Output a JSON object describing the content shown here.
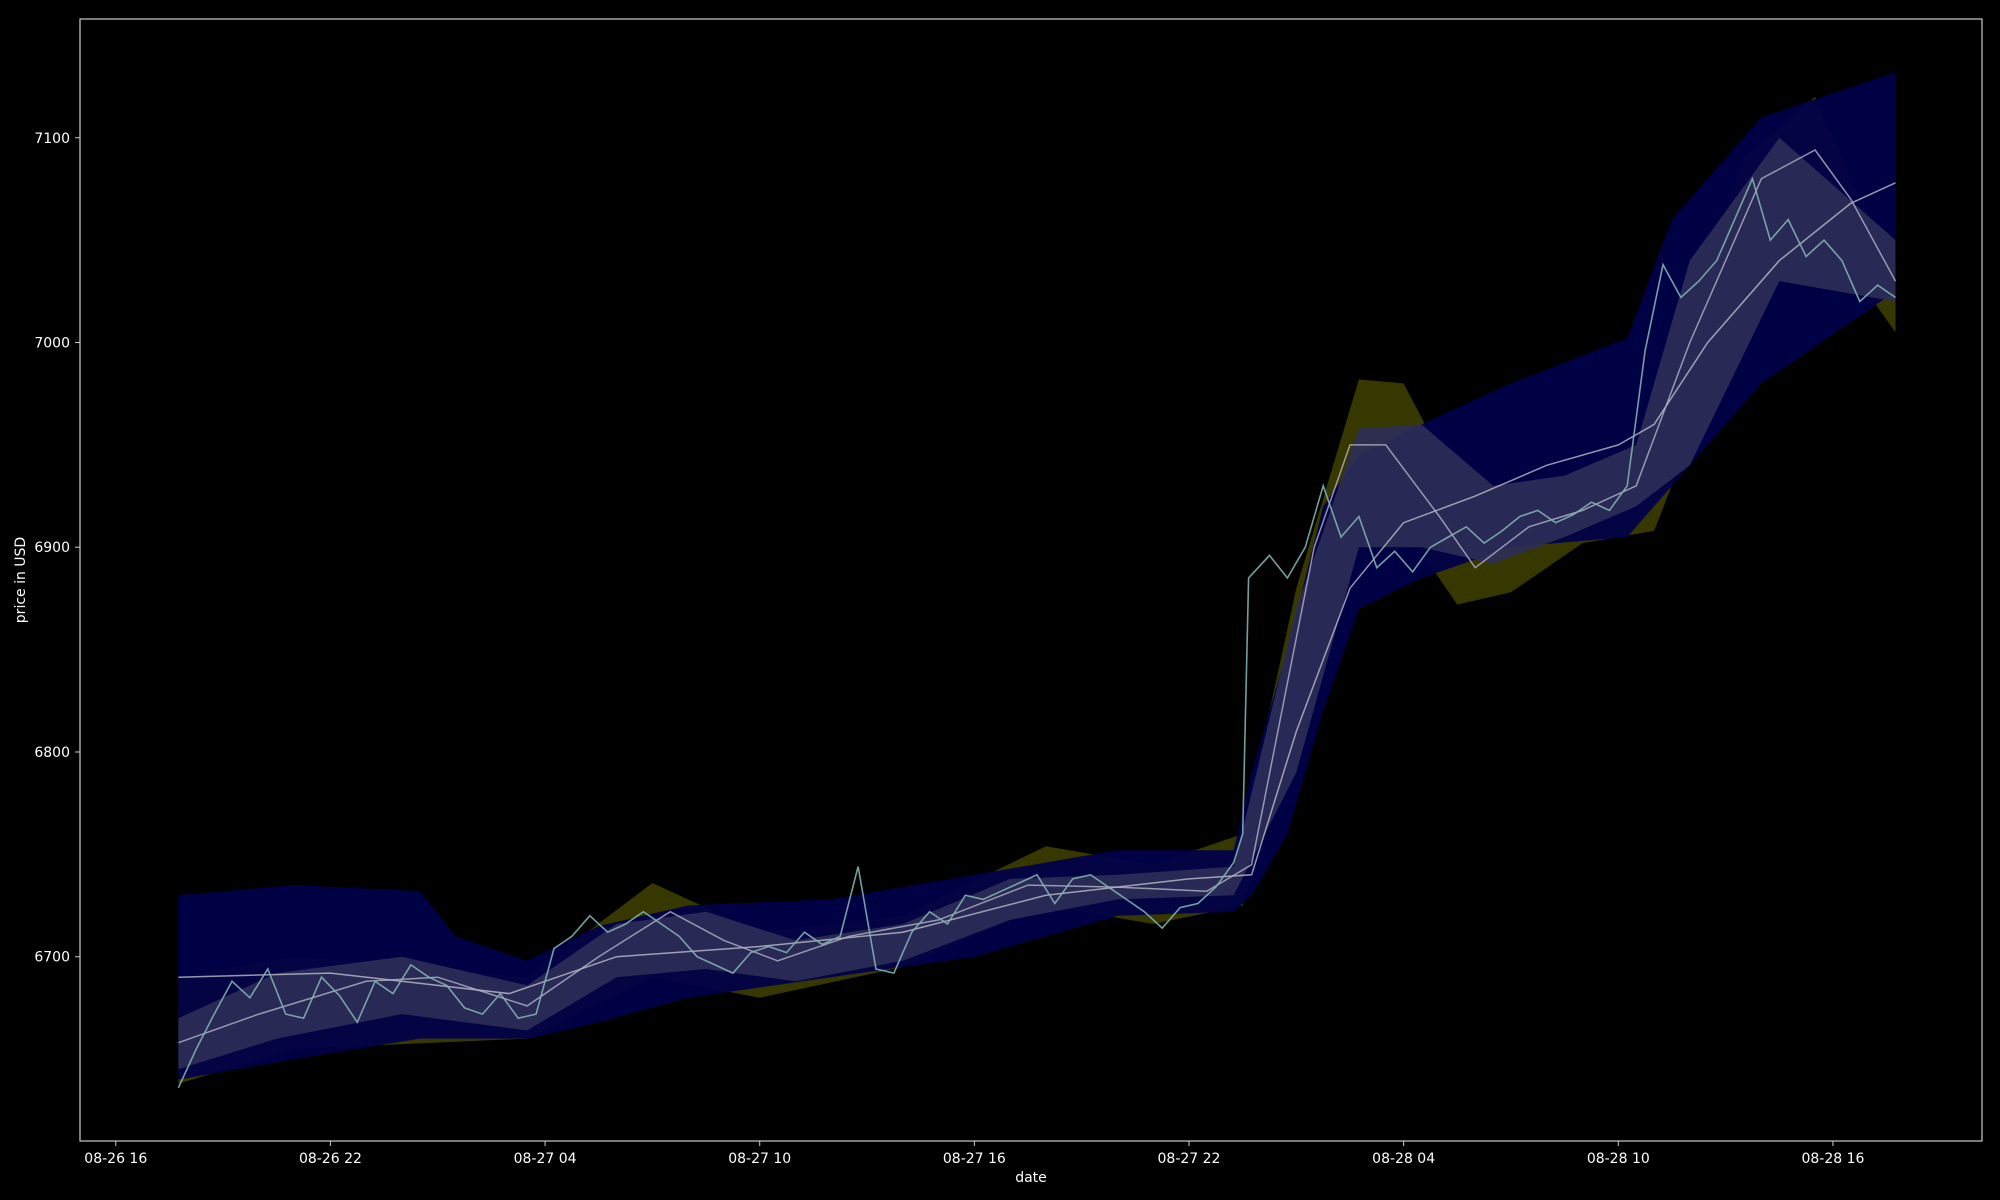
{
  "chart_data": {
    "type": "line",
    "xlabel": "date",
    "ylabel": "price in USD",
    "x_range": [
      "2018-08-26 15:00",
      "2018-08-28 20:10"
    ],
    "ylim": [
      6610,
      7158
    ],
    "x_ticks": [
      "08-26 16",
      "08-26 22",
      "08-27 04",
      "08-27 10",
      "08-27 16",
      "08-27 22",
      "08-28 04",
      "08-28 10",
      "08-28 16"
    ],
    "y_ticks": [
      6700,
      6800,
      6900,
      7000,
      7100
    ],
    "grid": false,
    "colors": {
      "background": "#000000",
      "price": "#7fb0b0",
      "moving_average": "#b4b4c8",
      "trend": "#c8c8d2",
      "wide_band": "#00004b",
      "narrow_band": "#2e2e58",
      "outer_band": "#3a3a00",
      "axes": "#cccccc"
    },
    "price": [
      [
        "2018-08-26 17:45",
        6636
      ],
      [
        "2018-08-26 18:15",
        6655
      ],
      [
        "2018-08-26 18:45",
        6672
      ],
      [
        "2018-08-26 19:15",
        6688
      ],
      [
        "2018-08-26 19:45",
        6680
      ],
      [
        "2018-08-26 20:15",
        6694
      ],
      [
        "2018-08-26 20:45",
        6672
      ],
      [
        "2018-08-26 21:15",
        6670
      ],
      [
        "2018-08-26 21:45",
        6690
      ],
      [
        "2018-08-26 22:15",
        6681
      ],
      [
        "2018-08-26 22:45",
        6668
      ],
      [
        "2018-08-26 23:15",
        6688
      ],
      [
        "2018-08-26 23:45",
        6682
      ],
      [
        "2018-08-27 00:15",
        6696
      ],
      [
        "2018-08-27 00:45",
        6690
      ],
      [
        "2018-08-27 01:15",
        6686
      ],
      [
        "2018-08-27 01:45",
        6675
      ],
      [
        "2018-08-27 02:15",
        6672
      ],
      [
        "2018-08-27 02:45",
        6682
      ],
      [
        "2018-08-27 03:15",
        6670
      ],
      [
        "2018-08-27 03:45",
        6672
      ],
      [
        "2018-08-27 04:15",
        6704
      ],
      [
        "2018-08-27 04:45",
        6710
      ],
      [
        "2018-08-27 05:15",
        6720
      ],
      [
        "2018-08-27 05:45",
        6712
      ],
      [
        "2018-08-27 06:15",
        6716
      ],
      [
        "2018-08-27 06:45",
        6722
      ],
      [
        "2018-08-27 07:15",
        6716
      ],
      [
        "2018-08-27 07:45",
        6710
      ],
      [
        "2018-08-27 08:15",
        6700
      ],
      [
        "2018-08-27 08:45",
        6696
      ],
      [
        "2018-08-27 09:15",
        6692
      ],
      [
        "2018-08-27 09:45",
        6702
      ],
      [
        "2018-08-27 10:15",
        6705
      ],
      [
        "2018-08-27 10:45",
        6702
      ],
      [
        "2018-08-27 11:15",
        6712
      ],
      [
        "2018-08-27 11:45",
        6706
      ],
      [
        "2018-08-27 12:15",
        6710
      ],
      [
        "2018-08-27 12:45",
        6744
      ],
      [
        "2018-08-27 13:15",
        6694
      ],
      [
        "2018-08-27 13:45",
        6692
      ],
      [
        "2018-08-27 14:15",
        6712
      ],
      [
        "2018-08-27 14:45",
        6722
      ],
      [
        "2018-08-27 15:15",
        6716
      ],
      [
        "2018-08-27 15:45",
        6730
      ],
      [
        "2018-08-27 16:15",
        6728
      ],
      [
        "2018-08-27 16:45",
        6732
      ],
      [
        "2018-08-27 17:15",
        6736
      ],
      [
        "2018-08-27 17:45",
        6740
      ],
      [
        "2018-08-27 18:15",
        6726
      ],
      [
        "2018-08-27 18:45",
        6738
      ],
      [
        "2018-08-27 19:15",
        6740
      ],
      [
        "2018-08-27 19:45",
        6734
      ],
      [
        "2018-08-27 20:15",
        6728
      ],
      [
        "2018-08-27 20:45",
        6722
      ],
      [
        "2018-08-27 21:15",
        6714
      ],
      [
        "2018-08-27 21:45",
        6724
      ],
      [
        "2018-08-27 22:15",
        6726
      ],
      [
        "2018-08-27 22:45",
        6734
      ],
      [
        "2018-08-27 23:15",
        6746
      ],
      [
        "2018-08-27 23:30",
        6760
      ],
      [
        "2018-08-27 23:40",
        6885
      ],
      [
        "2018-08-28 00:15",
        6896
      ],
      [
        "2018-08-28 00:45",
        6885
      ],
      [
        "2018-08-28 01:15",
        6900
      ],
      [
        "2018-08-28 01:45",
        6930
      ],
      [
        "2018-08-28 02:15",
        6905
      ],
      [
        "2018-08-28 02:45",
        6915
      ],
      [
        "2018-08-28 03:15",
        6890
      ],
      [
        "2018-08-28 03:45",
        6898
      ],
      [
        "2018-08-28 04:15",
        6888
      ],
      [
        "2018-08-28 04:45",
        6900
      ],
      [
        "2018-08-28 05:15",
        6905
      ],
      [
        "2018-08-28 05:45",
        6910
      ],
      [
        "2018-08-28 06:15",
        6902
      ],
      [
        "2018-08-28 06:45",
        6908
      ],
      [
        "2018-08-28 07:15",
        6915
      ],
      [
        "2018-08-28 07:45",
        6918
      ],
      [
        "2018-08-28 08:15",
        6912
      ],
      [
        "2018-08-28 08:45",
        6916
      ],
      [
        "2018-08-28 09:15",
        6922
      ],
      [
        "2018-08-28 09:45",
        6918
      ],
      [
        "2018-08-28 10:15",
        6930
      ],
      [
        "2018-08-28 10:45",
        6996
      ],
      [
        "2018-08-28 11:15",
        7038
      ],
      [
        "2018-08-28 11:45",
        7022
      ],
      [
        "2018-08-28 12:15",
        7030
      ],
      [
        "2018-08-28 12:45",
        7040
      ],
      [
        "2018-08-28 13:15",
        7060
      ],
      [
        "2018-08-28 13:45",
        7080
      ],
      [
        "2018-08-28 14:15",
        7050
      ],
      [
        "2018-08-28 14:45",
        7060
      ],
      [
        "2018-08-28 15:15",
        7042
      ],
      [
        "2018-08-28 15:45",
        7050
      ],
      [
        "2018-08-28 16:15",
        7040
      ],
      [
        "2018-08-28 16:45",
        7020
      ],
      [
        "2018-08-28 17:15",
        7028
      ],
      [
        "2018-08-28 17:45",
        7022
      ]
    ],
    "moving_average": [
      [
        "2018-08-26 17:45",
        6658
      ],
      [
        "2018-08-26 20:00",
        6672
      ],
      [
        "2018-08-26 23:00",
        6688
      ],
      [
        "2018-08-27 01:00",
        6690
      ],
      [
        "2018-08-27 03:30",
        6676
      ],
      [
        "2018-08-27 05:30",
        6700
      ],
      [
        "2018-08-27 07:30",
        6722
      ],
      [
        "2018-08-27 09:00",
        6708
      ],
      [
        "2018-08-27 10:30",
        6698
      ],
      [
        "2018-08-27 12:30",
        6710
      ],
      [
        "2018-08-27 15:00",
        6718
      ],
      [
        "2018-08-27 17:30",
        6735
      ],
      [
        "2018-08-27 20:00",
        6734
      ],
      [
        "2018-08-27 22:30",
        6732
      ],
      [
        "2018-08-27 23:45",
        6745
      ],
      [
        "2018-08-28 01:30",
        6900
      ],
      [
        "2018-08-28 02:30",
        6950
      ],
      [
        "2018-08-28 03:30",
        6950
      ],
      [
        "2018-08-28 05:00",
        6915
      ],
      [
        "2018-08-28 06:00",
        6890
      ],
      [
        "2018-08-28 07:30",
        6910
      ],
      [
        "2018-08-28 09:00",
        6918
      ],
      [
        "2018-08-28 10:30",
        6930
      ],
      [
        "2018-08-28 12:00",
        7000
      ],
      [
        "2018-08-28 14:00",
        7080
      ],
      [
        "2018-08-28 15:30",
        7094
      ],
      [
        "2018-08-28 16:30",
        7070
      ],
      [
        "2018-08-28 17:45",
        7030
      ]
    ],
    "trend": [
      [
        "2018-08-26 17:45",
        6690
      ],
      [
        "2018-08-26 22:00",
        6692
      ],
      [
        "2018-08-27 03:00",
        6682
      ],
      [
        "2018-08-27 06:00",
        6700
      ],
      [
        "2018-08-27 10:00",
        6705
      ],
      [
        "2018-08-27 14:00",
        6712
      ],
      [
        "2018-08-27 18:00",
        6730
      ],
      [
        "2018-08-27 22:00",
        6738
      ],
      [
        "2018-08-27 23:45",
        6740
      ],
      [
        "2018-08-28 01:00",
        6810
      ],
      [
        "2018-08-28 02:30",
        6880
      ],
      [
        "2018-08-28 04:00",
        6912
      ],
      [
        "2018-08-28 06:00",
        6925
      ],
      [
        "2018-08-28 08:00",
        6940
      ],
      [
        "2018-08-28 10:00",
        6950
      ],
      [
        "2018-08-28 11:00",
        6960
      ],
      [
        "2018-08-28 12:30",
        7000
      ],
      [
        "2018-08-28 14:30",
        7040
      ],
      [
        "2018-08-28 16:30",
        7068
      ],
      [
        "2018-08-28 17:45",
        7078
      ]
    ],
    "wide_band": [
      [
        "2018-08-26 17:45",
        6730,
        6640
      ],
      [
        "2018-08-26 21:00",
        6735,
        6650
      ],
      [
        "2018-08-27 00:30",
        6732,
        6660
      ],
      [
        "2018-08-27 01:30",
        6710,
        6660
      ],
      [
        "2018-08-27 03:30",
        6698,
        6660
      ],
      [
        "2018-08-27 05:30",
        6715,
        6668
      ],
      [
        "2018-08-27 08:00",
        6725,
        6680
      ],
      [
        "2018-08-27 12:00",
        6728,
        6690
      ],
      [
        "2018-08-27 16:00",
        6740,
        6700
      ],
      [
        "2018-08-27 20:00",
        6752,
        6720
      ],
      [
        "2018-08-27 23:15",
        6752,
        6722
      ],
      [
        "2018-08-27 23:45",
        6790,
        6730
      ],
      [
        "2018-08-28 00:45",
        6850,
        6760
      ],
      [
        "2018-08-28 01:45",
        6920,
        6820
      ],
      [
        "2018-08-28 02:45",
        6945,
        6870
      ],
      [
        "2018-08-28 04:30",
        6960,
        6885
      ],
      [
        "2018-08-28 07:00",
        6980,
        6900
      ],
      [
        "2018-08-28 10:15",
        7002,
        6905
      ],
      [
        "2018-08-28 11:30",
        7060,
        6930
      ],
      [
        "2018-08-28 14:00",
        7110,
        6980
      ],
      [
        "2018-08-28 17:45",
        7132,
        7025
      ]
    ],
    "narrow_band": [
      [
        "2018-08-26 17:45",
        6670,
        6645
      ],
      [
        "2018-08-26 20:30",
        6692,
        6660
      ],
      [
        "2018-08-27 00:00",
        6700,
        6672
      ],
      [
        "2018-08-27 03:30",
        6686,
        6664
      ],
      [
        "2018-08-27 06:00",
        6716,
        6690
      ],
      [
        "2018-08-27 08:30",
        6722,
        6694
      ],
      [
        "2018-08-27 11:00",
        6708,
        6688
      ],
      [
        "2018-08-27 14:00",
        6716,
        6698
      ],
      [
        "2018-08-27 17:00",
        6738,
        6718
      ],
      [
        "2018-08-27 20:00",
        6740,
        6728
      ],
      [
        "2018-08-27 23:15",
        6744,
        6730
      ],
      [
        "2018-08-28 01:00",
        6870,
        6790
      ],
      [
        "2018-08-28 02:45",
        6958,
        6900
      ],
      [
        "2018-08-28 04:30",
        6960,
        6900
      ],
      [
        "2018-08-28 06:30",
        6930,
        6892
      ],
      [
        "2018-08-28 08:30",
        6935,
        6905
      ],
      [
        "2018-08-28 10:30",
        6950,
        6920
      ],
      [
        "2018-08-28 12:00",
        7040,
        6940
      ],
      [
        "2018-08-28 14:30",
        7100,
        7030
      ],
      [
        "2018-08-28 17:45",
        7050,
        7020
      ]
    ],
    "outer_band": [
      [
        "2018-08-26 17:45",
        6690,
        6638
      ],
      [
        "2018-08-26 21:00",
        6700,
        6655
      ],
      [
        "2018-08-27 03:30",
        6690,
        6660
      ],
      [
        "2018-08-27 07:00",
        6736,
        6690
      ],
      [
        "2018-08-27 10:00",
        6712,
        6680
      ],
      [
        "2018-08-27 14:00",
        6720,
        6695
      ],
      [
        "2018-08-27 18:00",
        6754,
        6725
      ],
      [
        "2018-08-27 21:00",
        6745,
        6716
      ],
      [
        "2018-08-27 23:30",
        6760,
        6725
      ],
      [
        "2018-08-28 01:00",
        6880,
        6810
      ],
      [
        "2018-08-28 02:45",
        6982,
        6920
      ],
      [
        "2018-08-28 04:00",
        6980,
        6910
      ],
      [
        "2018-08-28 05:30",
        6930,
        6872
      ],
      [
        "2018-08-28 07:00",
        6920,
        6878
      ],
      [
        "2018-08-28 09:00",
        6930,
        6902
      ],
      [
        "2018-08-28 11:00",
        6960,
        6908
      ],
      [
        "2018-08-28 13:30",
        7090,
        7020
      ],
      [
        "2018-08-28 15:30",
        7120,
        7060
      ],
      [
        "2018-08-28 17:45",
        7030,
        7005
      ]
    ]
  }
}
